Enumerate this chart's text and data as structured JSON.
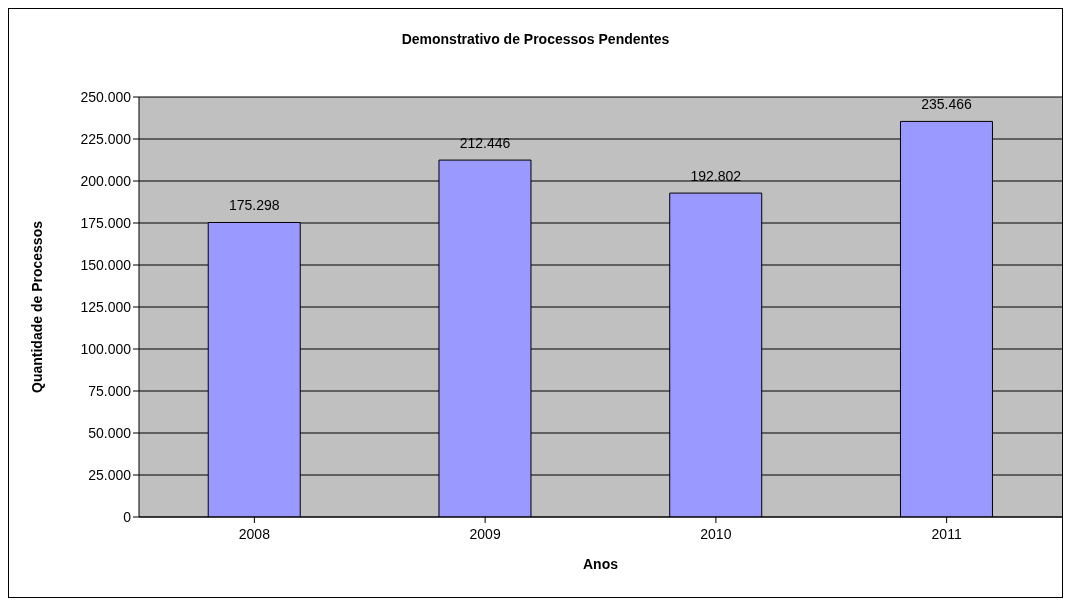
{
  "chart_data": {
    "type": "bar",
    "title": "Demonstrativo de Processos Pendentes",
    "xlabel": "Anos",
    "ylabel": "Quantidade de Processos",
    "categories": [
      "2008",
      "2009",
      "2010",
      "2011"
    ],
    "series": [
      {
        "color": "#9999ff",
        "values": [
          175298,
          212446,
          192802,
          235466
        ],
        "value_labels": [
          "175.298",
          "212.446",
          "192.802",
          "235.466"
        ]
      }
    ],
    "ylim": [
      0,
      250000
    ],
    "yticks": [
      {
        "value": 0,
        "label": "0"
      },
      {
        "value": 25000,
        "label": "25.000"
      },
      {
        "value": 50000,
        "label": "50.000"
      },
      {
        "value": 75000,
        "label": "75.000"
      },
      {
        "value": 100000,
        "label": "100.000"
      },
      {
        "value": 125000,
        "label": "125.000"
      },
      {
        "value": 150000,
        "label": "150.000"
      },
      {
        "value": 175000,
        "label": "175.000"
      },
      {
        "value": 200000,
        "label": "200.000"
      },
      {
        "value": 225000,
        "label": "225.000"
      },
      {
        "value": 250000,
        "label": "250.000"
      }
    ],
    "grid": "y"
  }
}
